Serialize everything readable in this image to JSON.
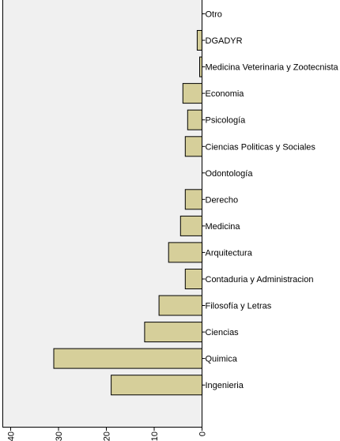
{
  "chart_data": {
    "type": "bar",
    "orientation": "horizontal",
    "bars_extend": "left",
    "categories": [
      "Otro",
      "DGADYR",
      "Medicina Veterinaria y Zootecnista",
      "Economia",
      "Psicología",
      "Ciencias Politicas y Sociales",
      "Odontología",
      "Derecho",
      "Medicina",
      "Arquitectura",
      "Contaduria y Administracion",
      "Filosofía y Letras",
      "Ciencias",
      "Quimica",
      "Ingenieria"
    ],
    "values": [
      0,
      1,
      0.5,
      4,
      3,
      3.5,
      0,
      3.5,
      4.5,
      7,
      3.5,
      9,
      12,
      31,
      19
    ],
    "xlim": [
      0,
      40
    ],
    "xticks": [
      0,
      10,
      20,
      30,
      40
    ],
    "tick_label_rotation": "vertical",
    "title": "",
    "xlabel": "",
    "ylabel": "",
    "grid": false,
    "colors": {
      "bar_fill": "#d6cf9a",
      "bar_stroke": "#000000",
      "plot_background": "#f0f0f0",
      "axis": "#000000"
    }
  }
}
